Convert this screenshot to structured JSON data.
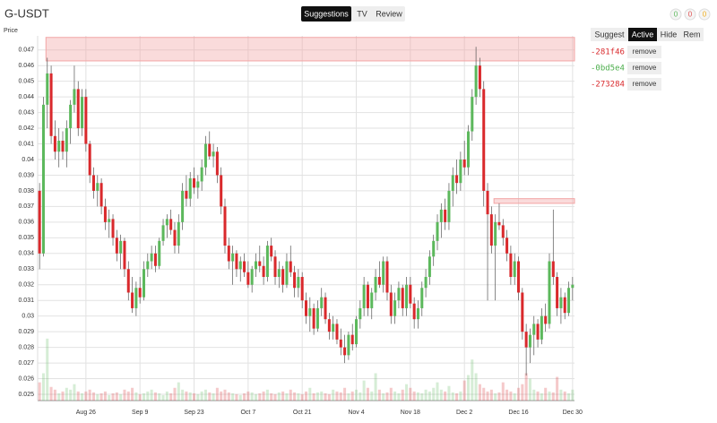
{
  "header": {
    "title": "G-USDT",
    "tabs": [
      "Suggestions",
      "TV",
      "Review"
    ],
    "active_tab": 0,
    "badges": [
      {
        "value": 0,
        "color": "#5cb85c"
      },
      {
        "value": 0,
        "color": "#e05050"
      },
      {
        "value": 0,
        "color": "#f0ad1e"
      }
    ]
  },
  "panel": {
    "buttons": [
      "Suggest",
      "Active",
      "Hide",
      "Rem"
    ],
    "active_button": 1,
    "items": [
      {
        "id": "-281f46",
        "color": "#d9292c",
        "action": "remove"
      },
      {
        "id": "-0bd5e4",
        "color": "#4cae4c",
        "action": "remove"
      },
      {
        "id": "-273284",
        "color": "#d9292c",
        "action": "remove"
      }
    ]
  },
  "chart_data": {
    "type": "candlestick",
    "y_label": "Price",
    "up_color": "#5cb85c",
    "down_color": "#d9292c",
    "grid": true,
    "ylim": [
      0.0246,
      0.0479
    ],
    "yticks": [
      0.025,
      0.026,
      0.027,
      0.028,
      0.029,
      0.03,
      0.031,
      0.032,
      0.033,
      0.034,
      0.035,
      0.036,
      0.037,
      0.038,
      0.039,
      0.04,
      0.041,
      0.042,
      0.043,
      0.044,
      0.045,
      0.046,
      0.047
    ],
    "xlim": [
      -0.5,
      138.5
    ],
    "xticks": [
      {
        "value": 12,
        "label": "Aug 26"
      },
      {
        "value": 26,
        "label": "Sep 9"
      },
      {
        "value": 40,
        "label": "Sep 23"
      },
      {
        "value": 54,
        "label": "Oct 7"
      },
      {
        "value": 68,
        "label": "Oct 21"
      },
      {
        "value": 82,
        "label": "Nov 4"
      },
      {
        "value": 96,
        "label": "Nov 18"
      },
      {
        "value": 110,
        "label": "Dec 2"
      },
      {
        "value": 124,
        "label": "Dec 16"
      },
      {
        "value": 138,
        "label": "Dec 30"
      }
    ],
    "zone_color": "#f2a5a5",
    "zones": [
      {
        "from": 0.0463,
        "to": 0.0478,
        "start": 2
      },
      {
        "from": 0.0372,
        "to": 0.0375,
        "start": 118
      }
    ],
    "candles": [
      [
        0.038,
        0.0385,
        0.033,
        0.034
      ],
      [
        0.034,
        0.044,
        0.0338,
        0.0435
      ],
      [
        0.0435,
        0.0465,
        0.042,
        0.0455
      ],
      [
        0.0455,
        0.046,
        0.041,
        0.0415
      ],
      [
        0.0415,
        0.0425,
        0.04,
        0.0405
      ],
      [
        0.0405,
        0.042,
        0.0395,
        0.0412
      ],
      [
        0.0412,
        0.0418,
        0.04,
        0.0405
      ],
      [
        0.0405,
        0.0425,
        0.0395,
        0.042
      ],
      [
        0.042,
        0.0438,
        0.041,
        0.0435
      ],
      [
        0.0435,
        0.046,
        0.043,
        0.0445
      ],
      [
        0.0445,
        0.045,
        0.0415,
        0.042
      ],
      [
        0.042,
        0.0445,
        0.0415,
        0.044
      ],
      [
        0.044,
        0.0445,
        0.0405,
        0.041
      ],
      [
        0.041,
        0.0412,
        0.0385,
        0.039
      ],
      [
        0.039,
        0.0395,
        0.0375,
        0.038
      ],
      [
        0.038,
        0.039,
        0.037,
        0.0385
      ],
      [
        0.0385,
        0.0388,
        0.0365,
        0.037
      ],
      [
        0.037,
        0.0375,
        0.0355,
        0.036
      ],
      [
        0.036,
        0.0368,
        0.035,
        0.0362
      ],
      [
        0.0362,
        0.0365,
        0.0345,
        0.035
      ],
      [
        0.035,
        0.0355,
        0.0335,
        0.034
      ],
      [
        0.034,
        0.0352,
        0.033,
        0.0348
      ],
      [
        0.0348,
        0.035,
        0.0325,
        0.033
      ],
      [
        0.033,
        0.0335,
        0.031,
        0.0315
      ],
      [
        0.0315,
        0.0325,
        0.0302,
        0.0305
      ],
      [
        0.0305,
        0.0322,
        0.03,
        0.0318
      ],
      [
        0.0318,
        0.0325,
        0.0308,
        0.0312
      ],
      [
        0.0312,
        0.0335,
        0.031,
        0.033
      ],
      [
        0.033,
        0.034,
        0.0325,
        0.0335
      ],
      [
        0.0335,
        0.0345,
        0.033,
        0.034
      ],
      [
        0.034,
        0.0345,
        0.0328,
        0.0332
      ],
      [
        0.0332,
        0.035,
        0.033,
        0.0348
      ],
      [
        0.0348,
        0.0362,
        0.0345,
        0.0358
      ],
      [
        0.0358,
        0.0365,
        0.035,
        0.0362
      ],
      [
        0.0362,
        0.0368,
        0.0352,
        0.0355
      ],
      [
        0.0355,
        0.036,
        0.034,
        0.0345
      ],
      [
        0.0345,
        0.0365,
        0.034,
        0.036
      ],
      [
        0.036,
        0.0385,
        0.0355,
        0.038
      ],
      [
        0.038,
        0.039,
        0.037,
        0.0375
      ],
      [
        0.0375,
        0.0392,
        0.037,
        0.0388
      ],
      [
        0.0388,
        0.0395,
        0.0378,
        0.0382
      ],
      [
        0.0382,
        0.039,
        0.0375,
        0.0386
      ],
      [
        0.0386,
        0.04,
        0.038,
        0.0395
      ],
      [
        0.0395,
        0.0415,
        0.039,
        0.041
      ],
      [
        0.041,
        0.0418,
        0.04,
        0.0402
      ],
      [
        0.0402,
        0.041,
        0.0395,
        0.0405
      ],
      [
        0.0405,
        0.0408,
        0.0385,
        0.039
      ],
      [
        0.039,
        0.0395,
        0.0365,
        0.037
      ],
      [
        0.037,
        0.0375,
        0.034,
        0.0345
      ],
      [
        0.0345,
        0.035,
        0.033,
        0.0335
      ],
      [
        0.0335,
        0.0345,
        0.032,
        0.034
      ],
      [
        0.034,
        0.0342,
        0.0325,
        0.033
      ],
      [
        0.033,
        0.0338,
        0.0322,
        0.0335
      ],
      [
        0.0335,
        0.034,
        0.0325,
        0.0328
      ],
      [
        0.0328,
        0.0335,
        0.0318,
        0.032
      ],
      [
        0.032,
        0.0332,
        0.0315,
        0.033
      ],
      [
        0.033,
        0.034,
        0.0325,
        0.0335
      ],
      [
        0.0335,
        0.0345,
        0.0328,
        0.0332
      ],
      [
        0.0332,
        0.0338,
        0.032,
        0.0325
      ],
      [
        0.0325,
        0.0348,
        0.0322,
        0.0345
      ],
      [
        0.0345,
        0.035,
        0.0335,
        0.0338
      ],
      [
        0.0338,
        0.0342,
        0.032,
        0.0325
      ],
      [
        0.0325,
        0.0335,
        0.0318,
        0.033
      ],
      [
        0.033,
        0.0332,
        0.0315,
        0.032
      ],
      [
        0.032,
        0.034,
        0.0318,
        0.0335
      ],
      [
        0.0335,
        0.0345,
        0.0325,
        0.0328
      ],
      [
        0.0328,
        0.0332,
        0.0312,
        0.0318
      ],
      [
        0.0318,
        0.033,
        0.0312,
        0.0325
      ],
      [
        0.0325,
        0.0328,
        0.0305,
        0.031
      ],
      [
        0.031,
        0.0315,
        0.0295,
        0.03
      ],
      [
        0.03,
        0.0312,
        0.029,
        0.0305
      ],
      [
        0.0305,
        0.0308,
        0.0288,
        0.0292
      ],
      [
        0.0292,
        0.031,
        0.029,
        0.0305
      ],
      [
        0.0305,
        0.0318,
        0.03,
        0.0312
      ],
      [
        0.0312,
        0.0315,
        0.0295,
        0.0298
      ],
      [
        0.0298,
        0.0302,
        0.0285,
        0.029
      ],
      [
        0.029,
        0.03,
        0.0285,
        0.0295
      ],
      [
        0.0295,
        0.0298,
        0.0282,
        0.0285
      ],
      [
        0.0285,
        0.0292,
        0.0275,
        0.028
      ],
      [
        0.028,
        0.0288,
        0.027,
        0.0275
      ],
      [
        0.0275,
        0.029,
        0.0272,
        0.0288
      ],
      [
        0.0288,
        0.0295,
        0.0278,
        0.0282
      ],
      [
        0.0282,
        0.03,
        0.028,
        0.0298
      ],
      [
        0.0298,
        0.031,
        0.0292,
        0.0305
      ],
      [
        0.0305,
        0.0325,
        0.03,
        0.032
      ],
      [
        0.032,
        0.0322,
        0.03,
        0.0305
      ],
      [
        0.0305,
        0.0318,
        0.0298,
        0.0315
      ],
      [
        0.0315,
        0.033,
        0.031,
        0.0325
      ],
      [
        0.0325,
        0.0335,
        0.0318,
        0.032
      ],
      [
        0.032,
        0.0338,
        0.0315,
        0.0335
      ],
      [
        0.0335,
        0.0338,
        0.031,
        0.0315
      ],
      [
        0.0315,
        0.032,
        0.0295,
        0.03
      ],
      [
        0.03,
        0.0315,
        0.0295,
        0.031
      ],
      [
        0.031,
        0.0322,
        0.0305,
        0.0318
      ],
      [
        0.0318,
        0.032,
        0.03,
        0.0305
      ],
      [
        0.0305,
        0.0325,
        0.03,
        0.032
      ],
      [
        0.032,
        0.0325,
        0.0305,
        0.0308
      ],
      [
        0.0308,
        0.0312,
        0.0292,
        0.0298
      ],
      [
        0.0298,
        0.031,
        0.0292,
        0.0305
      ],
      [
        0.0305,
        0.0322,
        0.03,
        0.0318
      ],
      [
        0.0318,
        0.033,
        0.0312,
        0.0325
      ],
      [
        0.0325,
        0.0342,
        0.032,
        0.0338
      ],
      [
        0.0338,
        0.0352,
        0.0332,
        0.0348
      ],
      [
        0.0348,
        0.0365,
        0.0342,
        0.036
      ],
      [
        0.036,
        0.0372,
        0.035,
        0.0368
      ],
      [
        0.0368,
        0.0375,
        0.0355,
        0.036
      ],
      [
        0.036,
        0.0385,
        0.0355,
        0.038
      ],
      [
        0.038,
        0.0395,
        0.037,
        0.039
      ],
      [
        0.039,
        0.04,
        0.0378,
        0.0385
      ],
      [
        0.0385,
        0.0405,
        0.038,
        0.04
      ],
      [
        0.04,
        0.0412,
        0.039,
        0.0395
      ],
      [
        0.0395,
        0.0422,
        0.039,
        0.0418
      ],
      [
        0.0418,
        0.0445,
        0.0412,
        0.044
      ],
      [
        0.044,
        0.0472,
        0.0435,
        0.046
      ],
      [
        0.046,
        0.0465,
        0.044,
        0.0445
      ],
      [
        0.0445,
        0.045,
        0.037,
        0.038
      ],
      [
        0.038,
        0.0385,
        0.031,
        0.0365
      ],
      [
        0.0365,
        0.037,
        0.034,
        0.0345
      ],
      [
        0.0345,
        0.0365,
        0.031,
        0.036
      ],
      [
        0.036,
        0.0372,
        0.0355,
        0.0358
      ],
      [
        0.0358,
        0.0362,
        0.0345,
        0.035
      ],
      [
        0.035,
        0.0355,
        0.0335,
        0.034
      ],
      [
        0.034,
        0.0345,
        0.032,
        0.0325
      ],
      [
        0.0325,
        0.034,
        0.032,
        0.0335
      ],
      [
        0.0335,
        0.0338,
        0.031,
        0.0315
      ],
      [
        0.0315,
        0.0318,
        0.0285,
        0.029
      ],
      [
        0.029,
        0.0295,
        0.0262,
        0.028
      ],
      [
        0.028,
        0.0292,
        0.027,
        0.0288
      ],
      [
        0.0288,
        0.03,
        0.0275,
        0.0295
      ],
      [
        0.0295,
        0.0298,
        0.028,
        0.0285
      ],
      [
        0.0285,
        0.0305,
        0.0282,
        0.03
      ],
      [
        0.03,
        0.0308,
        0.029,
        0.0295
      ],
      [
        0.0295,
        0.034,
        0.0292,
        0.0335
      ],
      [
        0.0335,
        0.0368,
        0.032,
        0.0325
      ],
      [
        0.0325,
        0.0328,
        0.03,
        0.0305
      ],
      [
        0.0305,
        0.0318,
        0.0295,
        0.0312
      ],
      [
        0.0312,
        0.0315,
        0.0298,
        0.0302
      ],
      [
        0.0302,
        0.0322,
        0.03,
        0.0318
      ],
      [
        0.0318,
        0.0325,
        0.031,
        0.032
      ]
    ],
    "y2lim": [
      0,
      400
    ],
    "volume": [
      20,
      30,
      68,
      15,
      12,
      8,
      10,
      14,
      12,
      18,
      10,
      8,
      10,
      12,
      9,
      7,
      8,
      10,
      6,
      8,
      9,
      7,
      12,
      10,
      14,
      9,
      7,
      8,
      10,
      12,
      9,
      8,
      6,
      10,
      8,
      14,
      20,
      12,
      10,
      9,
      8,
      7,
      10,
      12,
      9,
      8,
      14,
      10,
      12,
      9,
      8,
      7,
      6,
      8,
      10,
      9,
      7,
      8,
      10,
      12,
      8,
      7,
      9,
      10,
      8,
      12,
      9,
      8,
      7,
      10,
      14,
      8,
      9,
      10,
      8,
      7,
      12,
      10,
      9,
      14,
      8,
      10,
      12,
      9,
      22,
      14,
      10,
      30,
      12,
      8,
      9,
      14,
      10,
      8,
      12,
      18,
      14,
      10,
      9,
      8,
      12,
      10,
      14,
      20,
      12,
      10,
      16,
      9,
      8,
      10,
      22,
      28,
      45,
      30,
      18,
      14,
      10,
      12,
      8,
      9,
      20,
      12,
      10,
      8,
      14,
      18,
      30,
      24,
      12,
      10,
      8,
      14,
      10,
      9,
      26,
      12,
      10,
      8,
      12
    ]
  }
}
